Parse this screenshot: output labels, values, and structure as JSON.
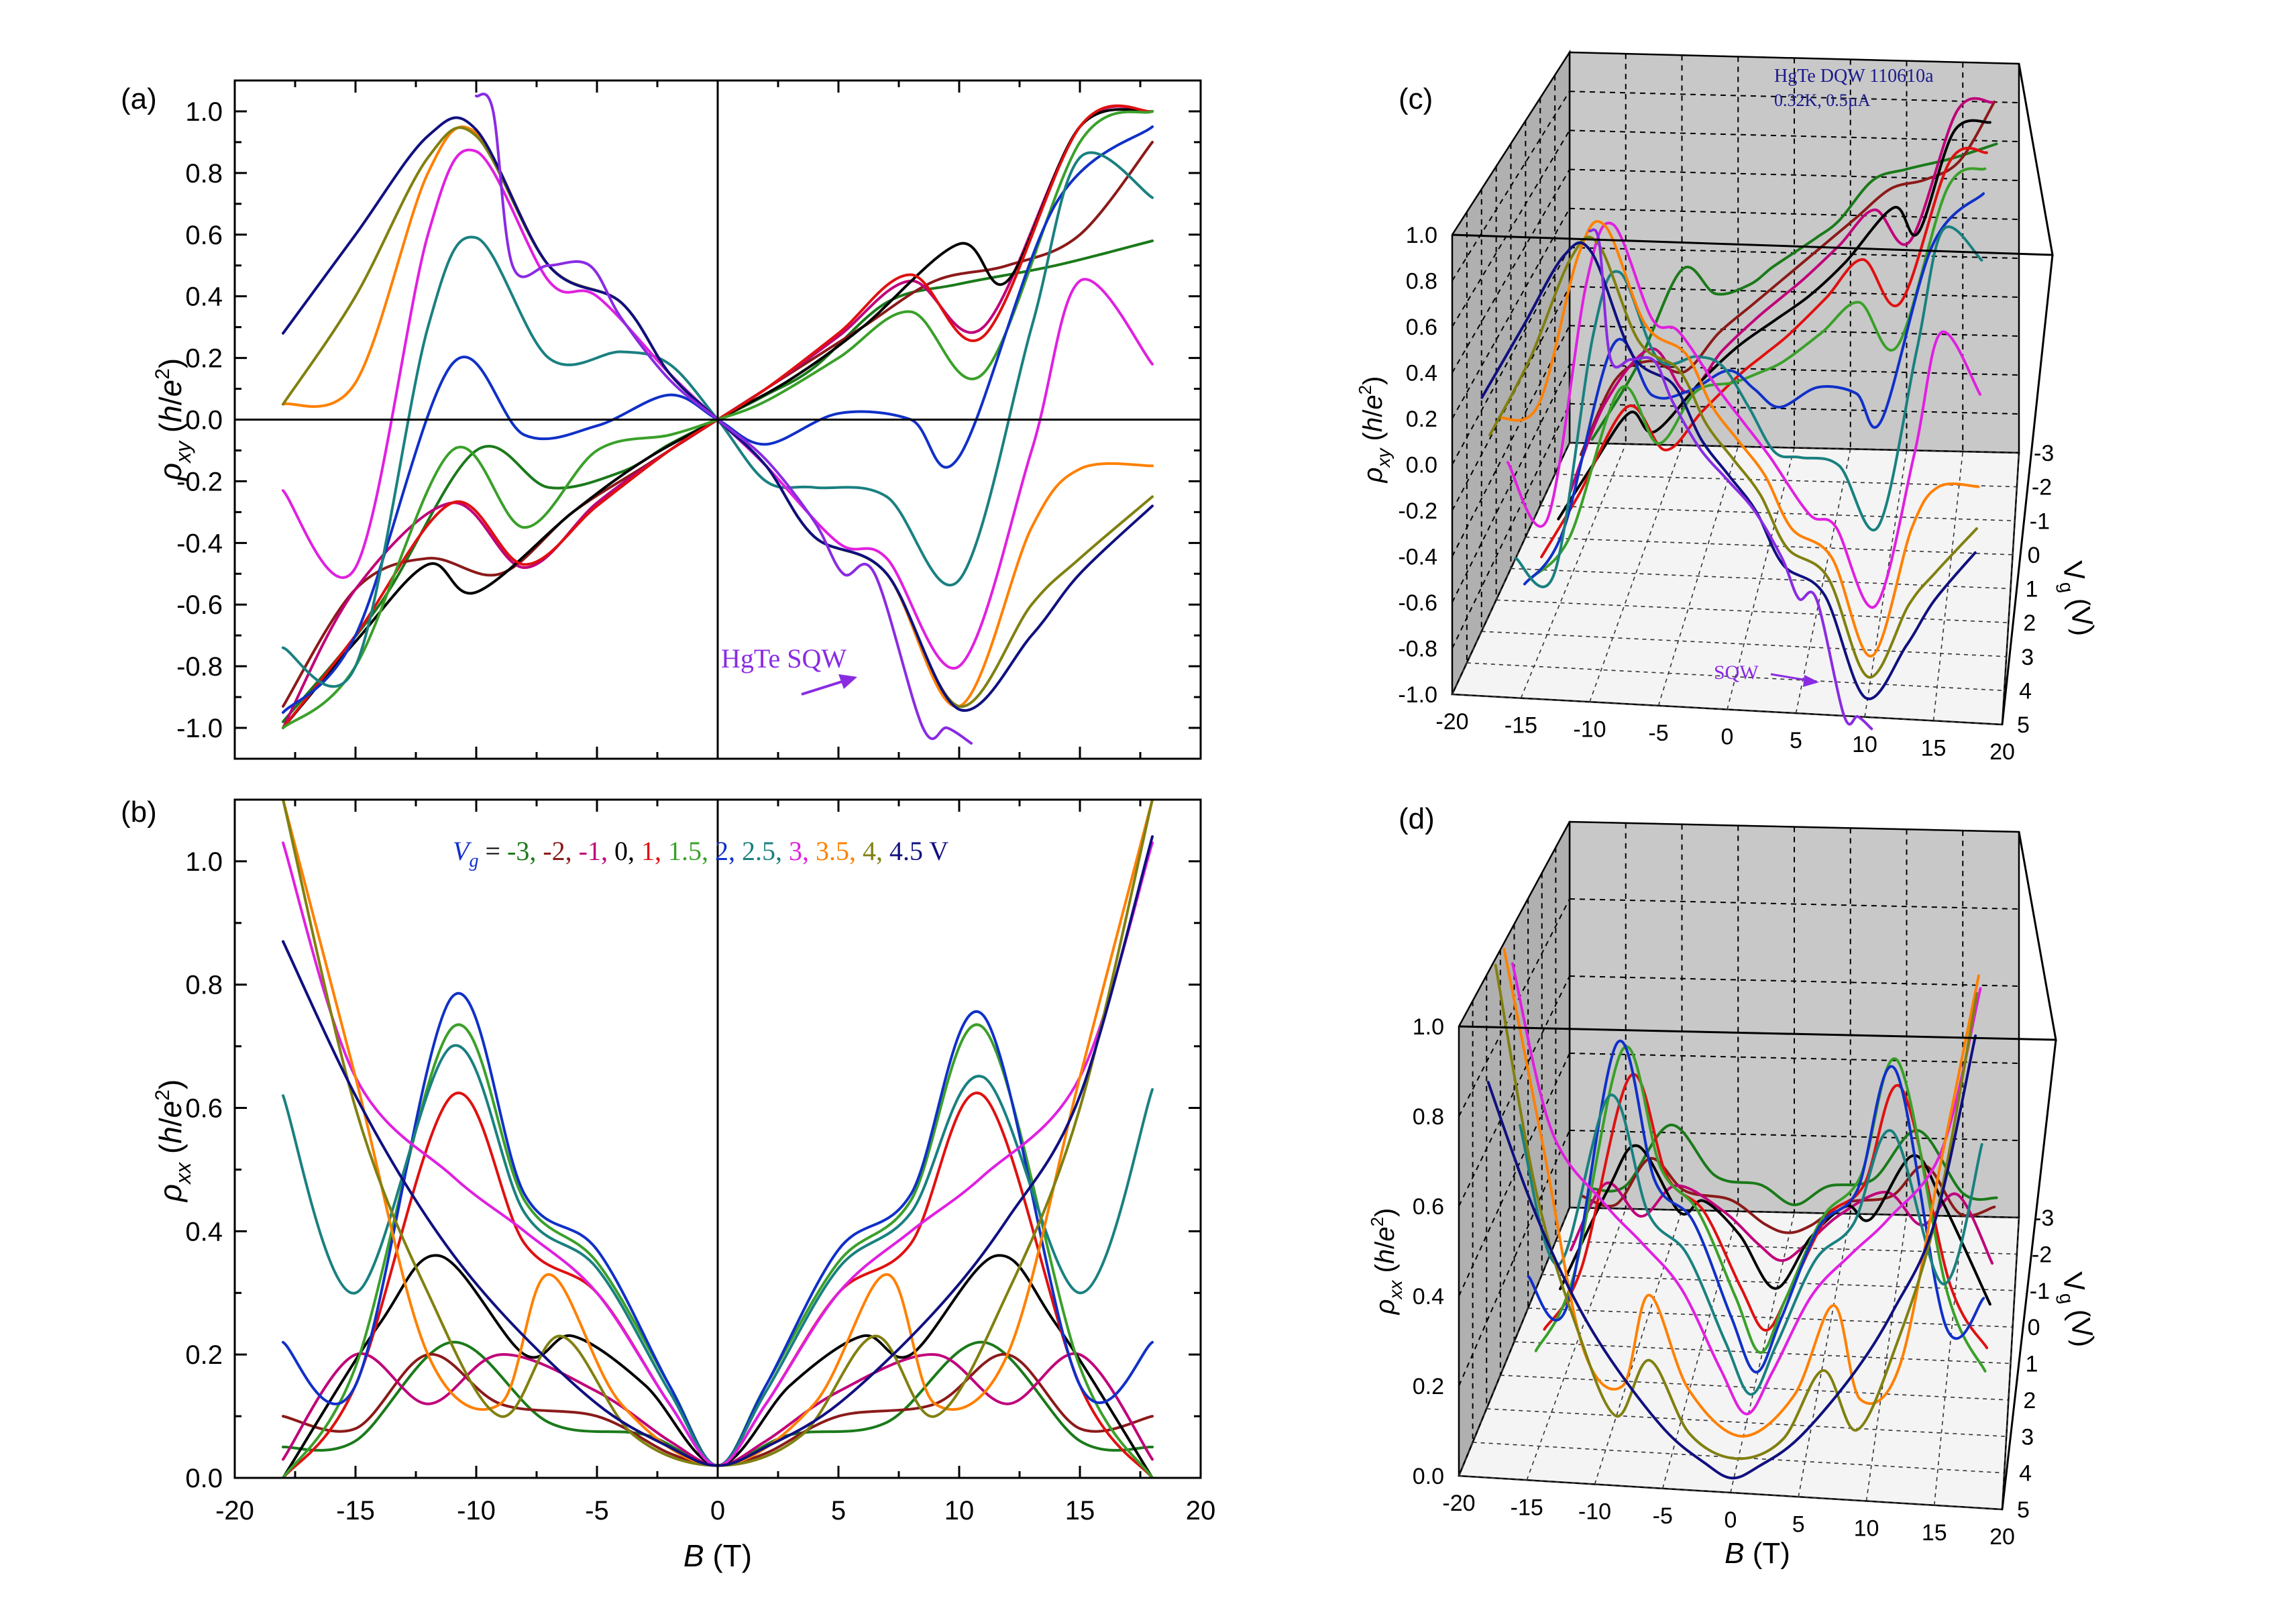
{
  "figure": {
    "panel_labels": [
      "(a)",
      "(b)",
      "(c)",
      "(d)"
    ],
    "legend": {
      "prefix": "V",
      "prefix_sub": "g",
      "equals": " = ",
      "entries": [
        "-3,",
        "-2,",
        "-1,",
        "0,",
        "1,",
        "1.5,",
        "2,",
        "2.5,",
        "3,",
        "3.5,",
        "4,",
        "4.5 V"
      ],
      "colors": [
        "#1a7a1a",
        "#8b1a1a",
        "#c0007a",
        "#000000",
        "#e01010",
        "#3aa02a",
        "#1030c8",
        "#1a8080",
        "#e020e0",
        "#ff8000",
        "#808010",
        "#101080"
      ]
    },
    "annotation_a": "HgTe SQW",
    "annotation_c": "SQW",
    "sample_label_c": [
      "HgTe DQW 110610a",
      "0.32K, 0.5µA"
    ],
    "colors": {
      "sqw": "#8a2be2",
      "title_blue": "#1a1a8c",
      "panel_gray": "#c8c8c8"
    }
  },
  "chart_data": [
    {
      "panel": "(a)",
      "type": "line",
      "ylabel": "ρxy (h/e2)",
      "xlim": [
        -20,
        20
      ],
      "ylim": [
        -1.1,
        1.1
      ],
      "xticks": [
        "-20",
        "-15",
        "-10",
        "-5",
        "0",
        "5",
        "10",
        "15",
        "20"
      ],
      "yticks": [
        "-1.0",
        "-0.8",
        "-0.6",
        "-0.4",
        "-0.2",
        "0.0",
        "0.2",
        "0.4",
        "0.6",
        "0.8",
        "1.0"
      ],
      "grid": false,
      "series": [
        {
          "name": "-3",
          "color": "#1a7a1a",
          "x": [
            -18,
            -14,
            -10,
            -7,
            -4,
            -2,
            0,
            2,
            4,
            7,
            10,
            14,
            18
          ],
          "y": [
            -0.98,
            -0.6,
            -0.1,
            -0.22,
            -0.17,
            -0.08,
            0,
            0.08,
            0.17,
            0.38,
            0.44,
            0.5,
            0.58
          ]
        },
        {
          "name": "-2",
          "color": "#8b1a1a",
          "x": [
            -18,
            -15,
            -12,
            -9,
            -6,
            -3,
            0,
            3,
            6,
            9,
            12,
            15,
            18
          ],
          "y": [
            -0.93,
            -0.55,
            -0.45,
            -0.5,
            -0.3,
            -0.15,
            0,
            0.15,
            0.3,
            0.45,
            0.5,
            0.6,
            0.9
          ]
        },
        {
          "name": "-1",
          "color": "#c0007a",
          "x": [
            -18,
            -15,
            -11,
            -8,
            -5,
            -2,
            0,
            2,
            5,
            8,
            11,
            15,
            18
          ],
          "y": [
            -1.0,
            -0.55,
            -0.27,
            -0.48,
            -0.27,
            -0.1,
            0,
            0.1,
            0.27,
            0.45,
            0.3,
            0.95,
            1.0
          ]
        },
        {
          "name": "0",
          "color": "#000000",
          "x": [
            -18,
            -15,
            -12,
            -10,
            -6,
            -3,
            0,
            3,
            6,
            10,
            12,
            15,
            18
          ],
          "y": [
            -1.0,
            -0.72,
            -0.47,
            -0.56,
            -0.3,
            -0.13,
            0,
            0.13,
            0.3,
            0.57,
            0.45,
            0.95,
            1.0
          ]
        },
        {
          "name": "1",
          "color": "#e01010",
          "x": [
            -18,
            -15,
            -11,
            -8,
            -5,
            -2,
            0,
            2,
            5,
            8,
            11,
            15,
            18
          ],
          "y": [
            -1.0,
            -0.7,
            -0.27,
            -0.47,
            -0.28,
            -0.1,
            0,
            0.1,
            0.28,
            0.47,
            0.27,
            0.95,
            1.0
          ]
        },
        {
          "name": "1.5",
          "color": "#3aa02a",
          "x": [
            -18,
            -15,
            -11,
            -8,
            -5,
            -2,
            0,
            2,
            5,
            8,
            11,
            15,
            18
          ],
          "y": [
            -1.0,
            -0.8,
            -0.1,
            -0.35,
            -0.1,
            -0.05,
            0,
            0.06,
            0.2,
            0.35,
            0.15,
            0.9,
            1.0
          ]
        },
        {
          "name": "2",
          "color": "#1030c8",
          "x": [
            -18,
            -15,
            -11,
            -8,
            -5,
            -2,
            0,
            2,
            5,
            8,
            10,
            14,
            18
          ],
          "y": [
            -0.95,
            -0.7,
            0.18,
            -0.05,
            -0.02,
            0.08,
            0,
            -0.08,
            0.02,
            0.0,
            -0.12,
            0.7,
            0.95
          ]
        },
        {
          "name": "2.5",
          "color": "#1a8080",
          "x": [
            -18,
            -15,
            -12,
            -10,
            -7,
            -4,
            -2,
            0,
            2,
            4,
            7,
            10,
            13,
            15,
            18
          ],
          "y": [
            -0.74,
            -0.8,
            0.3,
            0.59,
            0.2,
            0.22,
            0.18,
            0,
            -0.2,
            -0.22,
            -0.25,
            -0.52,
            0.3,
            0.85,
            0.72
          ]
        },
        {
          "name": "3",
          "color": "#e020e0",
          "x": [
            -18,
            -15,
            -12,
            -10,
            -7,
            -5,
            -2,
            0,
            2,
            5,
            7,
            10,
            13,
            15,
            18
          ],
          "y": [
            -0.23,
            -0.48,
            0.6,
            0.87,
            0.45,
            0.4,
            0.15,
            0,
            -0.15,
            -0.4,
            -0.45,
            -0.8,
            -0.1,
            0.45,
            0.18
          ]
        },
        {
          "name": "3.5",
          "color": "#ff8000",
          "x": [
            -18,
            -15,
            -12,
            -10,
            -7,
            -4,
            -2,
            0,
            2,
            4,
            7,
            10,
            13,
            15,
            18
          ],
          "y": [
            0.05,
            0.12,
            0.8,
            0.93,
            0.5,
            0.38,
            0.15,
            0,
            -0.15,
            -0.38,
            -0.5,
            -0.93,
            -0.35,
            -0.16,
            -0.15
          ]
        },
        {
          "name": "4",
          "color": "#808010",
          "x": [
            -18,
            -15,
            -12,
            -10,
            -7,
            -4,
            -2,
            0,
            2,
            4,
            7,
            10,
            13,
            15,
            18
          ],
          "y": [
            0.05,
            0.4,
            0.85,
            0.92,
            0.5,
            0.38,
            0.15,
            0,
            -0.15,
            -0.38,
            -0.5,
            -0.93,
            -0.6,
            -0.45,
            -0.25
          ]
        },
        {
          "name": "4.5",
          "color": "#101080",
          "x": [
            -18,
            -15,
            -12,
            -10,
            -7,
            -4,
            -2,
            0,
            2,
            4,
            7,
            10,
            13,
            15,
            18
          ],
          "y": [
            0.28,
            0.6,
            0.92,
            0.94,
            0.5,
            0.38,
            0.15,
            0,
            -0.15,
            -0.38,
            -0.5,
            -0.94,
            -0.7,
            -0.5,
            -0.28
          ]
        },
        {
          "name": "HgTe SQW",
          "color": "#8a2be2",
          "x": [
            -10,
            -9.3,
            -8.5,
            -7,
            -5.3,
            -4,
            -2,
            0,
            2,
            4,
            5.2,
            6.5,
            8.5,
            9.5,
            10.5
          ],
          "y": [
            1.05,
            1.0,
            0.5,
            0.5,
            0.5,
            0.33,
            0.13,
            0,
            -0.13,
            -0.33,
            -0.5,
            -0.5,
            -1.0,
            -1.0,
            -1.05
          ]
        }
      ]
    },
    {
      "panel": "(b)",
      "type": "line",
      "xlabel": "B (T)",
      "ylabel": "ρxx (h/e2)",
      "xlim": [
        -20,
        20
      ],
      "ylim": [
        0,
        1.1
      ],
      "xticks": [
        "-20",
        "-15",
        "-10",
        "-5",
        "0",
        "5",
        "10",
        "15",
        "20"
      ],
      "yticks": [
        "0.0",
        "0.2",
        "0.4",
        "0.6",
        "0.8",
        "1.0"
      ],
      "grid": false,
      "series": [
        {
          "name": "-3",
          "color": "#1a7a1a",
          "x": [
            -18,
            -15,
            -11,
            -7,
            -3,
            0,
            3,
            7,
            11,
            15,
            18
          ],
          "y": [
            0.05,
            0.06,
            0.22,
            0.09,
            0.07,
            0.02,
            0.07,
            0.09,
            0.22,
            0.06,
            0.05
          ]
        },
        {
          "name": "-2",
          "color": "#8b1a1a",
          "x": [
            -18,
            -15,
            -12,
            -9,
            -5,
            -2,
            0,
            2,
            5,
            9,
            12,
            15,
            18
          ],
          "y": [
            0.1,
            0.08,
            0.2,
            0.12,
            0.1,
            0.04,
            0.02,
            0.04,
            0.1,
            0.12,
            0.2,
            0.08,
            0.1
          ]
        },
        {
          "name": "-1",
          "color": "#c0007a",
          "x": [
            -18,
            -15,
            -12,
            -9,
            -5,
            -2,
            0,
            2,
            5,
            9,
            12,
            15,
            18
          ],
          "y": [
            0.03,
            0.2,
            0.12,
            0.2,
            0.14,
            0.06,
            0.02,
            0.06,
            0.14,
            0.2,
            0.12,
            0.2,
            0.03
          ]
        },
        {
          "name": "0",
          "color": "#000000",
          "x": [
            -18,
            -14,
            -11.5,
            -8,
            -6,
            -3,
            0,
            3,
            6,
            8,
            11.5,
            14,
            18
          ],
          "y": [
            0.0,
            0.25,
            0.36,
            0.2,
            0.23,
            0.15,
            0.02,
            0.15,
            0.23,
            0.2,
            0.36,
            0.25,
            0.0
          ]
        },
        {
          "name": "1",
          "color": "#e01010",
          "x": [
            -18,
            -15,
            -11,
            -8,
            -5,
            -2,
            0,
            2,
            5,
            8,
            11,
            15,
            18
          ],
          "y": [
            0.0,
            0.15,
            0.62,
            0.38,
            0.3,
            0.12,
            0.02,
            0.12,
            0.3,
            0.38,
            0.62,
            0.15,
            0.0
          ]
        },
        {
          "name": "1.5",
          "color": "#3aa02a",
          "x": [
            -18,
            -15,
            -11,
            -8,
            -5,
            -2,
            0,
            2,
            5,
            8,
            11,
            15,
            18
          ],
          "y": [
            0.0,
            0.18,
            0.73,
            0.45,
            0.35,
            0.15,
            0.02,
            0.15,
            0.35,
            0.45,
            0.73,
            0.18,
            0.0
          ]
        },
        {
          "name": "2",
          "color": "#1030c8",
          "x": [
            -18,
            -15,
            -11,
            -8,
            -5,
            -2,
            0,
            2,
            5,
            8,
            11,
            15,
            18
          ],
          "y": [
            0.22,
            0.15,
            0.78,
            0.46,
            0.37,
            0.15,
            0.02,
            0.15,
            0.37,
            0.46,
            0.75,
            0.15,
            0.22
          ]
        },
        {
          "name": "2.5",
          "color": "#1a8080",
          "x": [
            -18,
            -15,
            -11,
            -8,
            -5,
            -2,
            0,
            2,
            5,
            8,
            11,
            15,
            18
          ],
          "y": [
            0.62,
            0.3,
            0.7,
            0.43,
            0.34,
            0.14,
            0.02,
            0.14,
            0.34,
            0.43,
            0.65,
            0.3,
            0.63
          ]
        },
        {
          "name": "3",
          "color": "#e020e0",
          "x": [
            -18,
            -15,
            -11,
            -8,
            -5,
            -2,
            0,
            2,
            5,
            8,
            11,
            15,
            18
          ],
          "y": [
            1.03,
            0.65,
            0.49,
            0.4,
            0.3,
            0.12,
            0.02,
            0.12,
            0.3,
            0.4,
            0.49,
            0.65,
            1.03
          ]
        },
        {
          "name": "3.5",
          "color": "#ff8000",
          "x": [
            -18,
            -15,
            -12,
            -9,
            -7,
            -4,
            0,
            4,
            7,
            9,
            12,
            15,
            18
          ],
          "y": [
            1.1,
            0.65,
            0.2,
            0.12,
            0.33,
            0.12,
            0.02,
            0.12,
            0.33,
            0.12,
            0.2,
            0.65,
            1.1
          ]
        },
        {
          "name": "4",
          "color": "#808010",
          "x": [
            -18,
            -15,
            -12,
            -9,
            -6.5,
            -3.5,
            0,
            3.5,
            6.5,
            9,
            12,
            15,
            18
          ],
          "y": [
            1.1,
            0.6,
            0.3,
            0.1,
            0.23,
            0.07,
            0.02,
            0.07,
            0.23,
            0.1,
            0.3,
            0.6,
            1.1
          ]
        },
        {
          "name": "4.5",
          "color": "#101080",
          "x": [
            -18,
            -15,
            -12,
            -9,
            -5,
            -2,
            0,
            2,
            5,
            9,
            12,
            15,
            18
          ],
          "y": [
            0.87,
            0.62,
            0.42,
            0.27,
            0.12,
            0.05,
            0.02,
            0.05,
            0.12,
            0.27,
            0.42,
            0.62,
            1.04
          ]
        }
      ]
    },
    {
      "panel": "(c)",
      "type": "line",
      "xlabel": "",
      "ylabel": "ρxy (h/e2)",
      "zlabel": "Vg (V)",
      "xticks": [
        "-20",
        "-15",
        "-10",
        "-5",
        "0",
        "5",
        "10",
        "15",
        "20"
      ],
      "yticks": [
        "-1.0",
        "-0.8",
        "-0.6",
        "-0.4",
        "-0.2",
        "0.0",
        "0.2",
        "0.4",
        "0.6",
        "0.8",
        "1.0"
      ],
      "zticks": [
        "-3",
        "-2",
        "-1",
        "0",
        "1",
        "2",
        "3",
        "4",
        "5"
      ],
      "grid": true
    },
    {
      "panel": "(d)",
      "type": "line",
      "xlabel": "B (T)",
      "ylabel": "ρxx (h/e2)",
      "zlabel": "Vg (V)",
      "xticks": [
        "-20",
        "-15",
        "-10",
        "-5",
        "0",
        "5",
        "10",
        "15",
        "20"
      ],
      "yticks": [
        "0.0",
        "0.2",
        "0.4",
        "0.6",
        "0.8",
        "1.0"
      ],
      "zticks": [
        "-3",
        "-2",
        "-1",
        "0",
        "1",
        "2",
        "3",
        "4",
        "5"
      ],
      "grid": true
    }
  ]
}
